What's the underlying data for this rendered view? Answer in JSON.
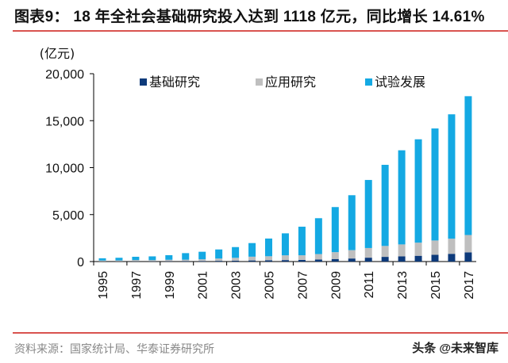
{
  "title": "图表9： 18 年全社会基础研究投入达到 1118 亿元，同比增长 14.61%",
  "source": "资料来源：国家统计局、华泰证券研究所",
  "watermark": "头条 @未来智库",
  "chart_data": {
    "type": "bar",
    "stacked": true,
    "title": "",
    "ylabel": "(亿元)",
    "xlabel": "",
    "ylim": [
      0,
      20000
    ],
    "yticks": [
      "0",
      "5,000",
      "10,000",
      "15,000",
      "20,000"
    ],
    "ytick_values": [
      0,
      5000,
      10000,
      15000,
      20000
    ],
    "legend_position": "top",
    "grid": false,
    "categories": [
      "1995",
      "1996",
      "1997",
      "1998",
      "1999",
      "2000",
      "2001",
      "2002",
      "2003",
      "2004",
      "2005",
      "2006",
      "2007",
      "2008",
      "2009",
      "2010",
      "2011",
      "2012",
      "2013",
      "2014",
      "2015",
      "2016",
      "2017"
    ],
    "xtick_labels_shown": [
      "1995",
      "1997",
      "1999",
      "2001",
      "2003",
      "2005",
      "2007",
      "2009",
      "2011",
      "2013",
      "2015",
      "2017"
    ],
    "series": [
      {
        "name": "基础研究",
        "color": "#0d3a7a",
        "values": [
          18,
          20,
          27,
          29,
          34,
          47,
          56,
          74,
          88,
          117,
          131,
          156,
          175,
          221,
          270,
          325,
          412,
          499,
          555,
          614,
          716,
          823,
          976
        ]
      },
      {
        "name": "应用研究",
        "color": "#bfbfbf",
        "values": [
          92,
          99,
          133,
          125,
          152,
          152,
          185,
          247,
          311,
          401,
          434,
          505,
          493,
          575,
          731,
          894,
          1028,
          1162,
          1269,
          1399,
          1529,
          1611,
          1849
        ]
      },
      {
        "name": "试验发展",
        "color": "#14a9e3",
        "values": [
          239,
          285,
          349,
          398,
          493,
          697,
          802,
          967,
          1141,
          1449,
          1885,
          2343,
          3043,
          3820,
          4801,
          5844,
          7247,
          8638,
          10023,
          11004,
          11925,
          13243,
          14781
        ]
      }
    ]
  }
}
